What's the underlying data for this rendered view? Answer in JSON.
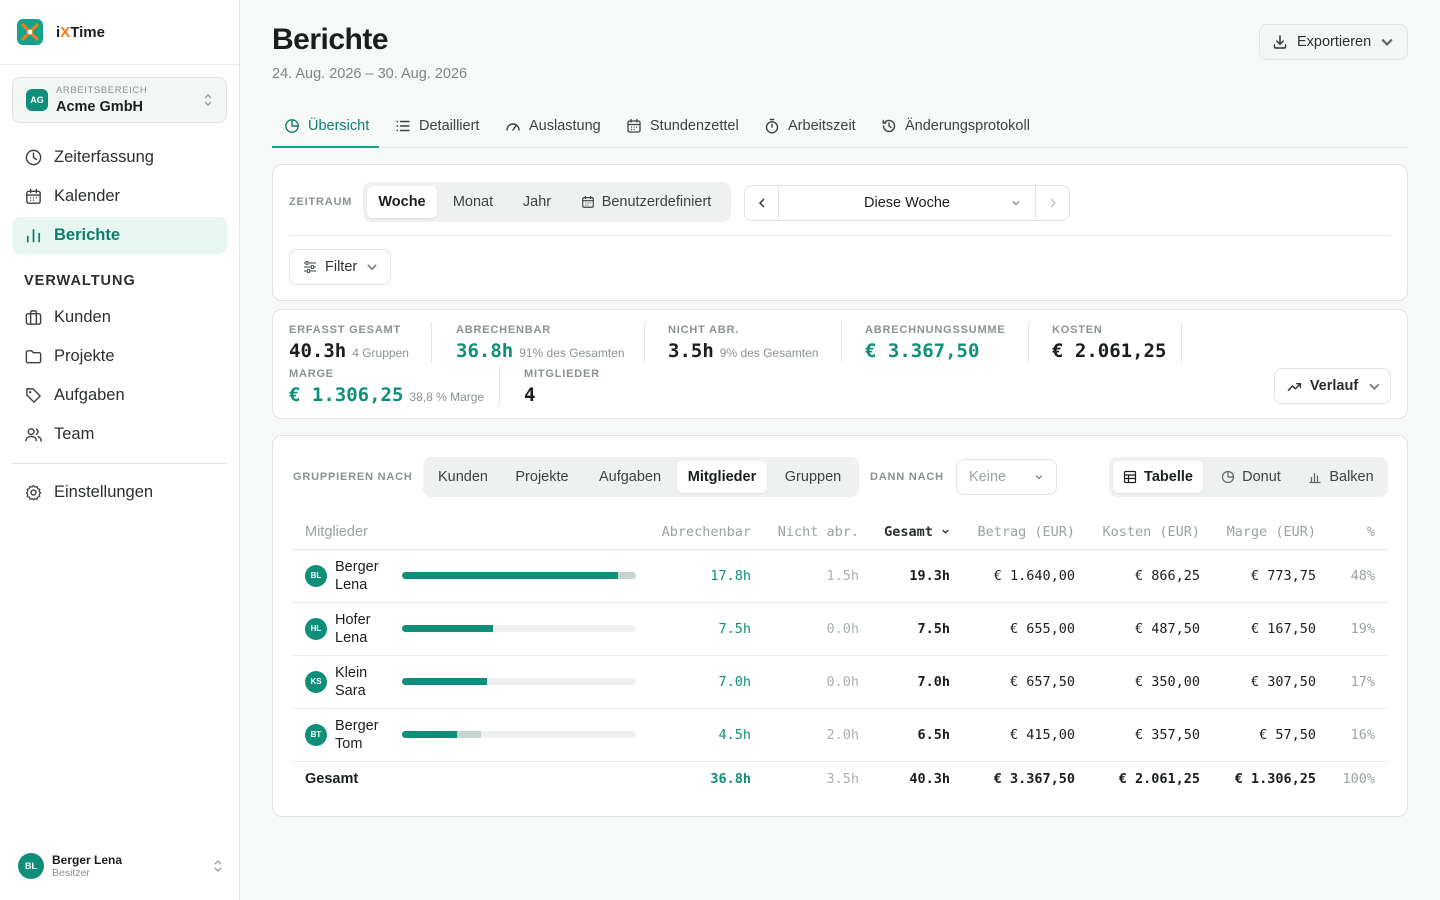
{
  "app": {
    "name_prefix": "i",
    "name_x": "X",
    "name_suffix": "Time"
  },
  "workspace": {
    "label": "ARBEITSBEREICH",
    "name": "Acme GmbH",
    "initials": "AG"
  },
  "sidebar": {
    "items": [
      {
        "label": "Zeiterfassung",
        "icon": "clock-icon"
      },
      {
        "label": "Kalender",
        "icon": "calendar-icon"
      },
      {
        "label": "Berichte",
        "icon": "bar-chart-icon",
        "active": true
      }
    ],
    "section": "VERWALTUNG",
    "admin_items": [
      {
        "label": "Kunden",
        "icon": "briefcase-icon"
      },
      {
        "label": "Projekte",
        "icon": "folder-icon"
      },
      {
        "label": "Aufgaben",
        "icon": "tag-icon"
      },
      {
        "label": "Team",
        "icon": "users-icon"
      }
    ],
    "settings": {
      "label": "Einstellungen",
      "icon": "gear-icon"
    }
  },
  "user": {
    "name": "Berger Lena",
    "role": "Besitzer",
    "initials": "BL"
  },
  "header": {
    "title": "Berichte",
    "subtitle": "24. Aug. 2026 – 30. Aug. 2026",
    "export_label": "Exportieren"
  },
  "tabs": [
    {
      "label": "Übersicht",
      "icon": "pie-icon",
      "active": true
    },
    {
      "label": "Detailliert",
      "icon": "list-icon"
    },
    {
      "label": "Auslastung",
      "icon": "gauge-icon"
    },
    {
      "label": "Stundenzettel",
      "icon": "calendar-icon"
    },
    {
      "label": "Arbeitszeit",
      "icon": "stopwatch-icon"
    },
    {
      "label": "Änderungsprotokoll",
      "icon": "history-icon"
    }
  ],
  "period": {
    "label": "ZEITRAUM",
    "options": [
      "Woche",
      "Monat",
      "Jahr",
      "Benutzerdefiniert"
    ],
    "selected": "Woche",
    "current": "Diese Woche",
    "filter_label": "Filter"
  },
  "stats": {
    "tracked": {
      "label": "ERFASST GESAMT",
      "value": "40.3h",
      "hint": "4 Gruppen"
    },
    "billable": {
      "label": "ABRECHENBAR",
      "value": "36.8h",
      "hint": "91% des Gesamten"
    },
    "non_billable": {
      "label": "NICHT ABR.",
      "value": "3.5h",
      "hint": "9% des Gesamten"
    },
    "billing_sum": {
      "label": "ABRECHNUNGSSUMME",
      "value": "€ 3.367,50"
    },
    "costs": {
      "label": "KOSTEN",
      "value": "€ 2.061,25"
    },
    "margin": {
      "label": "MARGE",
      "value": "€ 1.306,25",
      "hint": "38,8 % Marge"
    },
    "members": {
      "label": "MITGLIEDER",
      "value": "4"
    },
    "trend_label": "Verlauf"
  },
  "grouping": {
    "label": "GRUPPIEREN NACH",
    "options": [
      "Kunden",
      "Projekte",
      "Aufgaben",
      "Mitglieder",
      "Gruppen"
    ],
    "selected": "Mitglieder",
    "then_label": "DANN NACH",
    "then_value": "Keine",
    "views": [
      "Tabelle",
      "Donut",
      "Balken"
    ],
    "selected_view": "Tabelle"
  },
  "table": {
    "columns": [
      "Mitglieder",
      "Abrechenbar",
      "Nicht abr.",
      "Gesamt",
      "Betrag (EUR)",
      "Kosten (EUR)",
      "Marge (EUR)",
      "%"
    ],
    "sort_indicator": "⌄",
    "rows": [
      {
        "initials": "BL",
        "name": "Berger Lena",
        "billable": "17.8h",
        "non_billable": "1.5h",
        "total": "19.3h",
        "amount": "€ 1.640,00",
        "cost": "€ 866,25",
        "margin": "€ 773,75",
        "pct": "48%",
        "bill_frac": 0.922,
        "non_frac": 0.078
      },
      {
        "initials": "HL",
        "name": "Hofer Lena",
        "billable": "7.5h",
        "non_billable": "0.0h",
        "total": "7.5h",
        "amount": "€ 655,00",
        "cost": "€ 487,50",
        "margin": "€ 167,50",
        "pct": "19%",
        "bill_frac": 0.389,
        "non_frac": 0
      },
      {
        "initials": "KS",
        "name": "Klein Sara",
        "billable": "7.0h",
        "non_billable": "0.0h",
        "total": "7.0h",
        "amount": "€ 657,50",
        "cost": "€ 350,00",
        "margin": "€ 307,50",
        "pct": "17%",
        "bill_frac": 0.363,
        "non_frac": 0
      },
      {
        "initials": "BT",
        "name": "Berger Tom",
        "billable": "4.5h",
        "non_billable": "2.0h",
        "total": "6.5h",
        "amount": "€ 415,00",
        "cost": "€ 357,50",
        "margin": "€ 57,50",
        "pct": "16%",
        "bill_frac": 0.233,
        "non_frac": 0.104
      }
    ],
    "total": {
      "label": "Gesamt",
      "billable": "36.8h",
      "non_billable": "3.5h",
      "total": "40.3h",
      "amount": "€ 3.367,50",
      "cost": "€ 2.061,25",
      "margin": "€ 1.306,25",
      "pct": "100%"
    }
  },
  "colors": {
    "accent": "#0f8f7a",
    "accent_light": "#e8f6f2",
    "brand_orange": "#f07c1a"
  }
}
